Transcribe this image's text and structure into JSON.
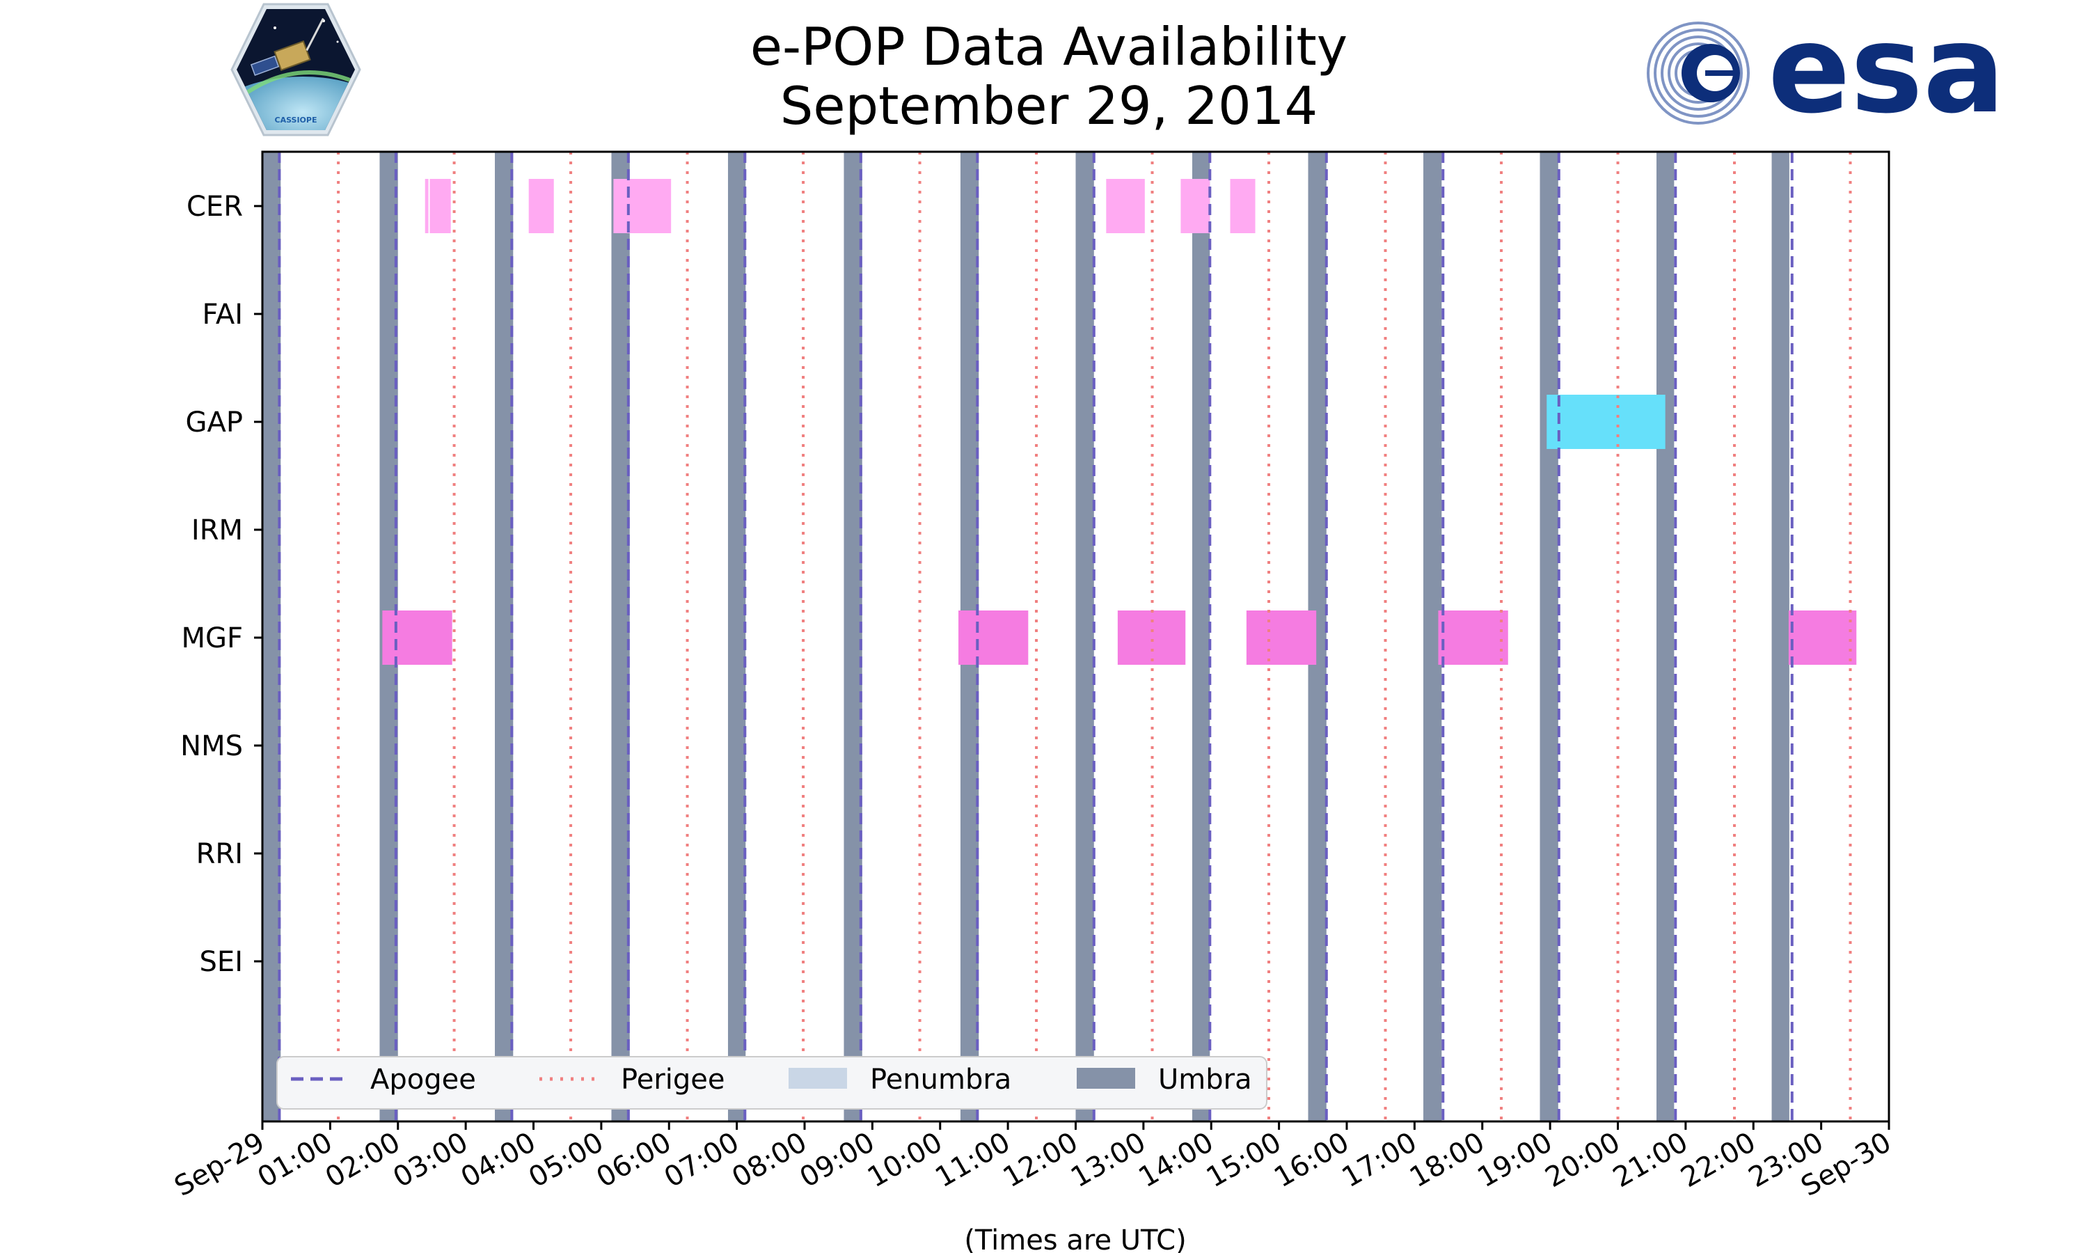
{
  "chart_data": {
    "type": "timeline",
    "title": "e-POP Data Availability",
    "subtitle": "September 29, 2014",
    "xlabel": "(Times are UTC)",
    "xlim_hours": [
      0,
      24
    ],
    "x_ticks": [
      {
        "h": 0,
        "label": "Sep-29"
      },
      {
        "h": 1,
        "label": "01:00"
      },
      {
        "h": 2,
        "label": "02:00"
      },
      {
        "h": 3,
        "label": "03:00"
      },
      {
        "h": 4,
        "label": "04:00"
      },
      {
        "h": 5,
        "label": "05:00"
      },
      {
        "h": 6,
        "label": "06:00"
      },
      {
        "h": 7,
        "label": "07:00"
      },
      {
        "h": 8,
        "label": "08:00"
      },
      {
        "h": 9,
        "label": "09:00"
      },
      {
        "h": 10,
        "label": "10:00"
      },
      {
        "h": 11,
        "label": "11:00"
      },
      {
        "h": 12,
        "label": "12:00"
      },
      {
        "h": 13,
        "label": "13:00"
      },
      {
        "h": 14,
        "label": "14:00"
      },
      {
        "h": 15,
        "label": "15:00"
      },
      {
        "h": 16,
        "label": "16:00"
      },
      {
        "h": 17,
        "label": "17:00"
      },
      {
        "h": 18,
        "label": "18:00"
      },
      {
        "h": 19,
        "label": "19:00"
      },
      {
        "h": 20,
        "label": "20:00"
      },
      {
        "h": 21,
        "label": "21:00"
      },
      {
        "h": 22,
        "label": "22:00"
      },
      {
        "h": 23,
        "label": "23:00"
      },
      {
        "h": 24,
        "label": "Sep-30"
      }
    ],
    "instruments": [
      "CER",
      "FAI",
      "GAP",
      "IRM",
      "MGF",
      "NMS",
      "RRI",
      "SEI"
    ],
    "apogee_hours": [
      0.25,
      1.97,
      3.68,
      5.4,
      7.12,
      8.83,
      10.55,
      12.27,
      13.98,
      15.7,
      17.42,
      19.13,
      20.85,
      22.57
    ],
    "perigee_hours": [
      1.12,
      2.83,
      4.55,
      6.27,
      7.98,
      9.7,
      11.42,
      13.13,
      14.85,
      16.57,
      18.28,
      20.0,
      21.72,
      23.43
    ],
    "umbra_intervals": [
      [
        0.0,
        0.27
      ],
      [
        1.73,
        2.0
      ],
      [
        3.43,
        3.7
      ],
      [
        5.15,
        5.42
      ],
      [
        6.87,
        7.13
      ],
      [
        8.58,
        8.85
      ],
      [
        10.3,
        10.57
      ],
      [
        12.0,
        12.27
      ],
      [
        13.72,
        13.98
      ],
      [
        15.43,
        15.7
      ],
      [
        17.13,
        17.4
      ],
      [
        18.85,
        19.12
      ],
      [
        20.57,
        20.83
      ],
      [
        22.27,
        22.53
      ]
    ],
    "data_intervals": [
      {
        "instrument": "CER",
        "start": 2.4,
        "end": 2.45,
        "color": "#ffaaf2"
      },
      {
        "instrument": "CER",
        "start": 2.47,
        "end": 2.78,
        "color": "#ffaaf2"
      },
      {
        "instrument": "CER",
        "start": 3.93,
        "end": 4.3,
        "color": "#ffaaf2"
      },
      {
        "instrument": "CER",
        "start": 5.18,
        "end": 6.03,
        "color": "#ffaaf2"
      },
      {
        "instrument": "CER",
        "start": 12.45,
        "end": 13.02,
        "color": "#ffaaf2"
      },
      {
        "instrument": "CER",
        "start": 13.55,
        "end": 13.98,
        "color": "#ffaaf2"
      },
      {
        "instrument": "CER",
        "start": 14.28,
        "end": 14.65,
        "color": "#ffaaf2"
      },
      {
        "instrument": "GAP",
        "start": 18.95,
        "end": 20.7,
        "color": "#66e0fa"
      },
      {
        "instrument": "MGF",
        "start": 1.77,
        "end": 2.8,
        "color": "#f57ce1"
      },
      {
        "instrument": "MGF",
        "start": 10.27,
        "end": 11.3,
        "color": "#f57ce1"
      },
      {
        "instrument": "MGF",
        "start": 12.62,
        "end": 13.62,
        "color": "#f57ce1"
      },
      {
        "instrument": "MGF",
        "start": 14.52,
        "end": 15.55,
        "color": "#f57ce1"
      },
      {
        "instrument": "MGF",
        "start": 17.35,
        "end": 18.38,
        "color": "#f57ce1"
      },
      {
        "instrument": "MGF",
        "start": 22.52,
        "end": 23.52,
        "color": "#f57ce1"
      }
    ],
    "legend": {
      "placement": "lower-left",
      "entries": [
        {
          "key": "apogee",
          "label": "Apogee"
        },
        {
          "key": "perigee",
          "label": "Perigee"
        },
        {
          "key": "penumbra",
          "label": "Penumbra"
        },
        {
          "key": "umbra",
          "label": "Umbra"
        }
      ]
    },
    "colors": {
      "apogee": "#6a5fc1",
      "perigee": "#f08080",
      "penumbra": "#c9d6e6",
      "umbra": "#8592a8",
      "frame": "#000000"
    }
  },
  "logos": {
    "left": {
      "name": "cassiope-mission-badge",
      "text": "CASSIOPE"
    },
    "right": {
      "name": "esa-logo",
      "text": "esa",
      "color": "#0d2e7a"
    }
  }
}
